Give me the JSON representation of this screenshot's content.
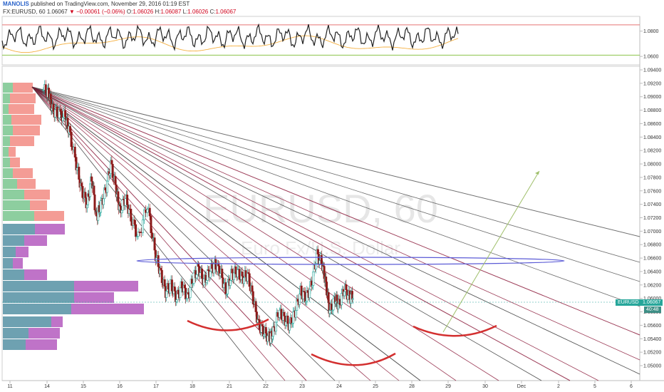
{
  "header": {
    "author": "MANOLIS",
    "published": "published on TradingView.com, November 29, 2016 01:19 EST",
    "symbol": "FX:EURUSD, 60",
    "price": "1.06067",
    "change": "−0.00061 (−0.06%)",
    "o_label": "O:",
    "o_value": "1.06026",
    "h_label": "H:",
    "h_value": "1.06087",
    "l_label": "L:",
    "l_value": "1.06026",
    "c_label": "C:",
    "c_value": "1.06067"
  },
  "watermark": {
    "symbol": "EURUSD, 60",
    "description": "Euro Fx/U.S. Dollar"
  },
  "tags": {
    "symbol": "EURUSD",
    "price": "1.06067",
    "countdown": "40:48"
  },
  "colors": {
    "up": "#26a69a",
    "down": "#8b1a1a",
    "fan": "#8b1a3a",
    "volume_up": "#81c995",
    "volume_down": "#f28b82",
    "profile_a": "#5e97a8",
    "profile_b": "#b864c2",
    "ellipse": "#5b5bd6",
    "arc": "#d32f2f",
    "projection": "#9fbf6a"
  },
  "chart_data": {
    "type": "candlestick",
    "instrument": "FX:EURUSD",
    "timeframe": "60",
    "x_tick_labels": [
      "11",
      "14",
      "15",
      "16",
      "17",
      "18",
      "21",
      "22",
      "23",
      "24",
      "25",
      "28",
      "29",
      "30",
      "Dec",
      "2",
      "5",
      "6"
    ],
    "y_tick_labels": [
      "1.09400",
      "1.09200",
      "1.09000",
      "1.08800",
      "1.08600",
      "1.08400",
      "1.08200",
      "1.08000",
      "1.07800",
      "1.07600",
      "1.07400",
      "1.07200",
      "1.07000",
      "1.06800",
      "1.06600",
      "1.06400",
      "1.06200",
      "1.06000",
      "1.05800",
      "1.05600",
      "1.05400",
      "1.05200",
      "1.05000"
    ],
    "ylim": [
      1.0492,
      1.0948
    ],
    "last_price": 1.06067,
    "close_path": [
      {
        "x": 11.9,
        "y": 1.091
      },
      {
        "x": 12.1,
        "y": 1.0905
      },
      {
        "x": 12.3,
        "y": 1.088
      },
      {
        "x": 12.6,
        "y": 1.0875
      },
      {
        "x": 13.0,
        "y": 1.087
      },
      {
        "x": 13.2,
        "y": 1.085
      },
      {
        "x": 13.6,
        "y": 1.08
      },
      {
        "x": 13.9,
        "y": 1.076
      },
      {
        "x": 14.2,
        "y": 1.074
      },
      {
        "x": 14.45,
        "y": 1.078
      },
      {
        "x": 14.7,
        "y": 1.072
      },
      {
        "x": 14.9,
        "y": 1.0735
      },
      {
        "x": 15.2,
        "y": 1.076
      },
      {
        "x": 15.5,
        "y": 1.08
      },
      {
        "x": 15.8,
        "y": 1.076
      },
      {
        "x": 16.0,
        "y": 1.073
      },
      {
        "x": 16.3,
        "y": 1.075
      },
      {
        "x": 16.6,
        "y": 1.072
      },
      {
        "x": 17.0,
        "y": 1.069
      },
      {
        "x": 17.5,
        "y": 1.074
      },
      {
        "x": 17.9,
        "y": 1.067
      },
      {
        "x": 18.2,
        "y": 1.064
      },
      {
        "x": 18.5,
        "y": 1.061
      },
      {
        "x": 18.8,
        "y": 1.062
      },
      {
        "x": 19.1,
        "y": 1.06
      },
      {
        "x": 19.4,
        "y": 1.062
      },
      {
        "x": 19.7,
        "y": 1.06
      },
      {
        "x": 20.0,
        "y": 1.063
      },
      {
        "x": 20.3,
        "y": 1.0645
      },
      {
        "x": 20.6,
        "y": 1.0625
      },
      {
        "x": 20.9,
        "y": 1.064
      },
      {
        "x": 21.2,
        "y": 1.065
      },
      {
        "x": 21.5,
        "y": 1.064
      },
      {
        "x": 21.8,
        "y": 1.061
      },
      {
        "x": 22.1,
        "y": 1.0635
      },
      {
        "x": 22.4,
        "y": 1.064
      },
      {
        "x": 22.7,
        "y": 1.063
      },
      {
        "x": 23.0,
        "y": 1.0635
      },
      {
        "x": 23.3,
        "y": 1.06
      },
      {
        "x": 23.6,
        "y": 1.056
      },
      {
        "x": 23.9,
        "y": 1.055
      },
      {
        "x": 24.2,
        "y": 1.054
      },
      {
        "x": 24.4,
        "y": 1.055
      },
      {
        "x": 24.7,
        "y": 1.058
      },
      {
        "x": 25.0,
        "y": 1.057
      },
      {
        "x": 25.3,
        "y": 1.056
      },
      {
        "x": 25.6,
        "y": 1.058
      },
      {
        "x": 25.9,
        "y": 1.061
      },
      {
        "x": 26.2,
        "y": 1.06
      },
      {
        "x": 26.5,
        "y": 1.062
      },
      {
        "x": 26.8,
        "y": 1.0665
      },
      {
        "x": 27.1,
        "y": 1.065
      },
      {
        "x": 27.3,
        "y": 1.062
      },
      {
        "x": 27.5,
        "y": 1.058
      },
      {
        "x": 27.8,
        "y": 1.06
      },
      {
        "x": 28.0,
        "y": 1.059
      },
      {
        "x": 28.3,
        "y": 1.0615
      },
      {
        "x": 28.6,
        "y": 1.06
      },
      {
        "x": 28.8,
        "y": 1.06067
      }
    ],
    "oscillator": {
      "levels": [
        1.085,
        1.061
      ],
      "y_tick_labels": [
        "1.0800",
        "1.0600"
      ],
      "ylim": [
        1.055,
        1.09
      ]
    }
  }
}
